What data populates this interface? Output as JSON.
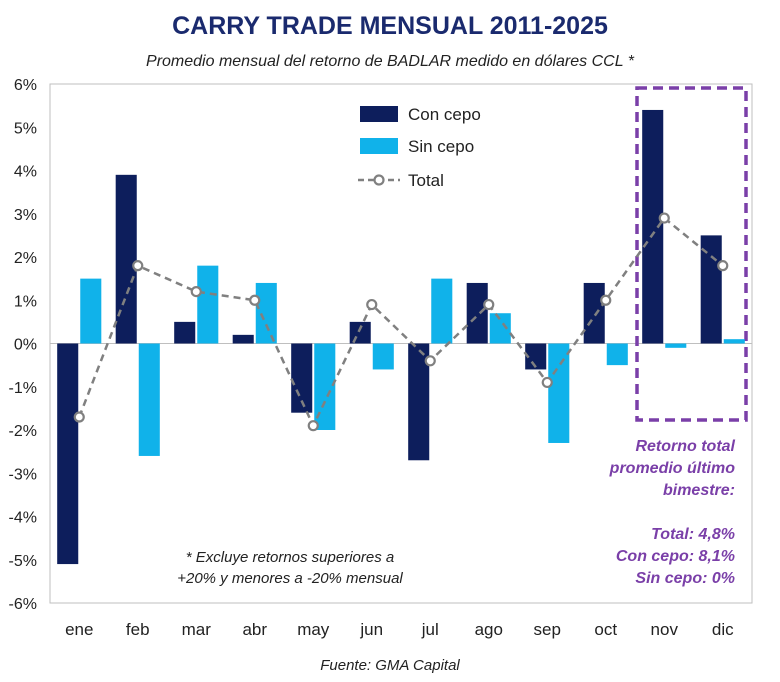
{
  "chart_data": {
    "type": "bar",
    "title": "CARRY TRADE MENSUAL 2011-2025",
    "subtitle": "Promedio mensual del retorno de BADLAR medido en dólares CCL *",
    "categories": [
      "ene",
      "feb",
      "mar",
      "abr",
      "may",
      "jun",
      "jul",
      "ago",
      "sep",
      "oct",
      "nov",
      "dic"
    ],
    "series": [
      {
        "name": "Con cepo",
        "type": "bar",
        "color": "#0d1e5c",
        "values": [
          -5.1,
          3.9,
          0.5,
          0.2,
          -1.6,
          0.5,
          -2.7,
          1.4,
          -0.6,
          1.4,
          5.4,
          2.5
        ]
      },
      {
        "name": "Sin cepo",
        "type": "bar",
        "color": "#10b2ea",
        "values": [
          1.5,
          -2.6,
          1.8,
          1.4,
          -2.0,
          -0.6,
          1.5,
          0.7,
          -2.3,
          -0.5,
          -0.1,
          0.1
        ]
      },
      {
        "name": "Total",
        "type": "line",
        "color": "#808080",
        "values": [
          -1.7,
          1.8,
          1.2,
          1.0,
          -1.9,
          0.9,
          -0.4,
          0.9,
          -0.9,
          1.0,
          2.9,
          1.8
        ]
      }
    ],
    "ylim": [
      -6,
      6
    ],
    "yticks": [
      -6,
      -5,
      -4,
      -3,
      -2,
      -1,
      0,
      1,
      2,
      3,
      4,
      5,
      6
    ],
    "ytick_labels": [
      "-6%",
      "-5%",
      "-4%",
      "-3%",
      "-2%",
      "-1%",
      "0%",
      "1%",
      "2%",
      "3%",
      "4%",
      "5%",
      "6%"
    ],
    "legend_position": "top-center",
    "grid": false,
    "highlight_categories": [
      "nov",
      "dic"
    ],
    "highlight_color": "#7a3fa8"
  },
  "colors": {
    "title": "#1a2a6e",
    "accent": "#7a3fa8"
  },
  "annotations": {
    "highlight_title": [
      "Retorno total",
      "promedio último",
      "bimestre:"
    ],
    "highlight_values": [
      "Total: 4,8%",
      "Con cepo: 8,1%",
      "Sin cepo: 0%"
    ],
    "footnote": [
      "* Excluye retornos superiores a",
      "+20% y menores a -20% mensual"
    ],
    "source": "Fuente: GMA Capital"
  }
}
